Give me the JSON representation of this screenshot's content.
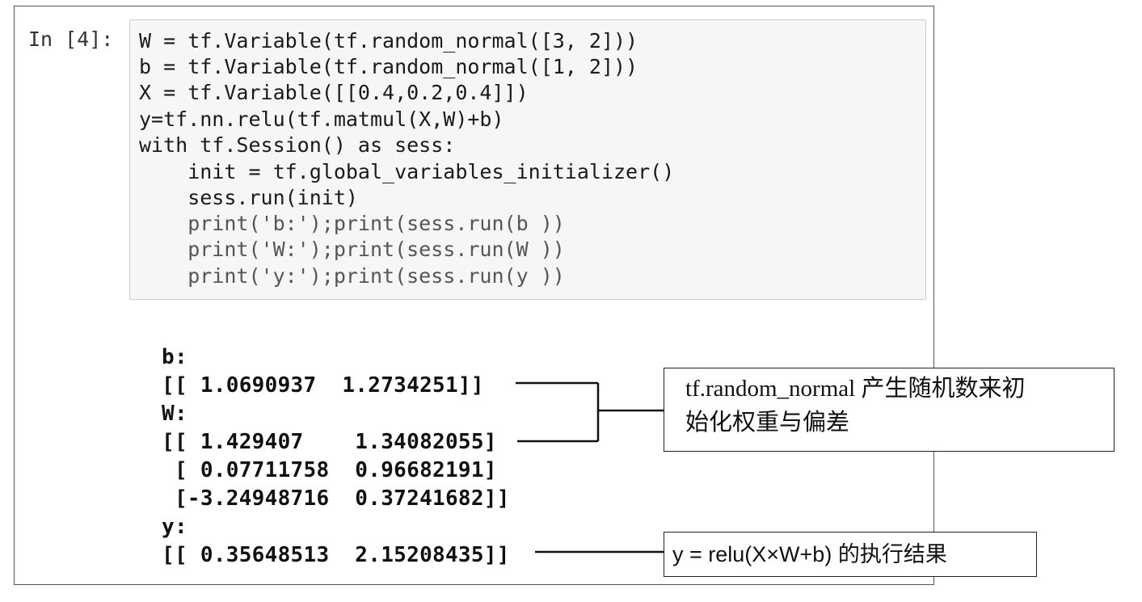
{
  "cell": {
    "prompt": "In [4]:",
    "code_lines": [
      "W = tf.Variable(tf.random_normal([3, 2]))",
      "b = tf.Variable(tf.random_normal([1, 2]))",
      "X = tf.Variable([[0.4,0.2,0.4]])",
      "y=tf.nn.relu(tf.matmul(X,W)+b)",
      "with tf.Session() as sess:",
      "    init = tf.global_variables_initializer()",
      "    sess.run(init)",
      "    print('b:');print(sess.run(b ))",
      "    print('W:');print(sess.run(W ))",
      "    print('y:');print(sess.run(y ))"
    ]
  },
  "output": {
    "lines": [
      "b:",
      "[[ 1.0690937  1.2734251]]",
      "W:",
      "[[ 1.429407    1.34082055]",
      " [ 0.07711758  0.96682191]",
      " [-3.24948716  0.37241682]]",
      "y:",
      "[[ 0.35648513  2.15208435]]"
    ]
  },
  "annotations": {
    "init_note_line1": "tf.random_normal 产生随机数来初",
    "init_note_line2": "始化权重与偏差",
    "result_note": "y = relu(X×W+b) 的执行结果"
  }
}
